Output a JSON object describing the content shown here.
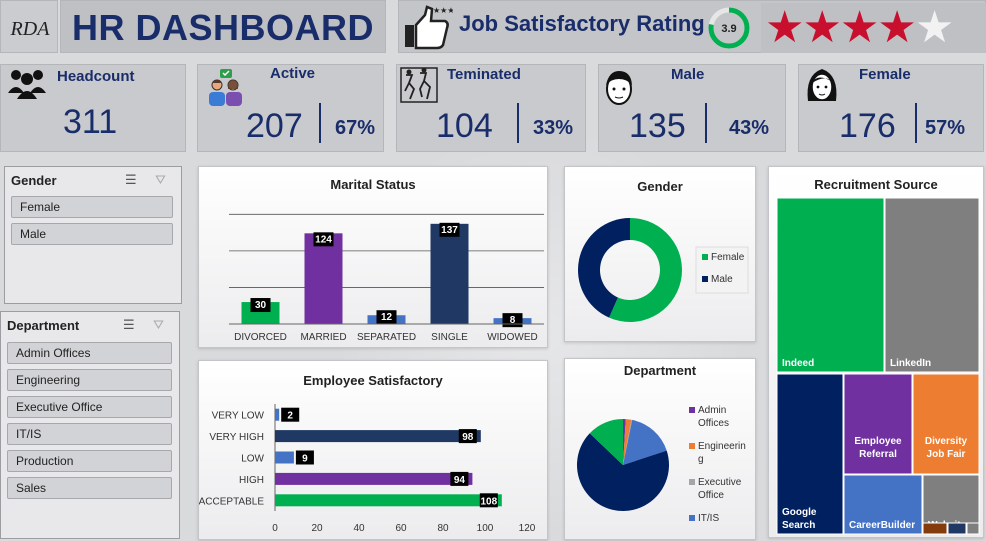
{
  "header": {
    "logo_text": "RDA",
    "title": "HR DASHBOARD",
    "rating_title": "Job Satisfactory Rating",
    "rating_value": "3.9",
    "rating_fraction": 0.78,
    "stars_filled": 4,
    "stars_total": 5
  },
  "kpis": [
    {
      "label": "Headcount",
      "value": "311",
      "icon": "people-group-icon"
    },
    {
      "label": "Active",
      "value": "207",
      "pct": "67%",
      "icon": "active-employees-icon"
    },
    {
      "label": "Teminated",
      "value": "104",
      "pct": "33%",
      "icon": "terminated-icon"
    },
    {
      "label": "Male",
      "value": "135",
      "pct": "43%",
      "icon": "male-face-icon"
    },
    {
      "label": "Female",
      "value": "176",
      "pct": "57%",
      "icon": "female-face-icon"
    }
  ],
  "slicers": {
    "gender": {
      "title": "Gender",
      "items": [
        "Female",
        "Male"
      ]
    },
    "department": {
      "title": "Department",
      "items": [
        "Admin Offices",
        "Engineering",
        "Executive Office",
        "IT/IS",
        "Production",
        "Sales"
      ]
    }
  },
  "colors": {
    "green": "#00b050",
    "purple": "#7030a0",
    "blue": "#4472c4",
    "navy": "#1f3864",
    "orange": "#ed7d31",
    "gray": "#7f7f7f",
    "dark_navy": "#002060",
    "star_red": "#c8102e"
  },
  "chart_data": [
    {
      "id": "marital",
      "type": "bar",
      "title": "Marital Status",
      "categories": [
        "DIVORCED",
        "MARRIED",
        "SEPARATED",
        "SINGLE",
        "WIDOWED"
      ],
      "values": [
        30,
        124,
        12,
        137,
        8
      ],
      "colors": [
        "#00b050",
        "#7030a0",
        "#4472c4",
        "#1f3864",
        "#4472c4"
      ],
      "ylim": [
        0,
        160
      ]
    },
    {
      "id": "gender",
      "type": "pie",
      "title": "Gender",
      "labels": [
        "Female",
        "Male"
      ],
      "values": [
        176,
        135
      ],
      "colors": [
        "#00b050",
        "#002060"
      ],
      "donut": true
    },
    {
      "id": "satisfaction",
      "type": "bar",
      "orientation": "horizontal",
      "title": "Employee Satisfactory",
      "categories": [
        "VERY LOW",
        "VERY HIGH",
        "LOW",
        "HIGH",
        "ACCEPTABLE"
      ],
      "values": [
        2,
        98,
        9,
        94,
        108
      ],
      "colors": [
        "#4472c4",
        "#1f3864",
        "#4472c4",
        "#7030a0",
        "#00b050"
      ],
      "xticks": [
        "0",
        "20",
        "40",
        "60",
        "80",
        "100",
        "120"
      ],
      "xlim": [
        0,
        120
      ]
    },
    {
      "id": "department",
      "type": "pie",
      "title": "Department",
      "legend": [
        "Admin Offices",
        "Engineering",
        "Executive Office",
        "IT/IS"
      ],
      "legend_lines": [
        [
          "Admin",
          "Offices"
        ],
        [
          "Engineerin",
          "g"
        ],
        [
          "Executive",
          "Office"
        ],
        [
          "IT/IS"
        ]
      ],
      "values": [
        3,
        6,
        1,
        52,
        209,
        40
      ],
      "colors": [
        "#7030a0",
        "#ed7d31",
        "#a5a5a5",
        "#4472c4",
        "#002060",
        "#00b050"
      ]
    },
    {
      "id": "recruitment",
      "type": "treemap",
      "title": "Recruitment Source",
      "labels": [
        "Indeed",
        "LinkedIn",
        "Google Search",
        "Employee Referral",
        "Diversity Job Fair",
        "CareerBuilder",
        "Website"
      ],
      "label_lines": [
        [
          "Indeed"
        ],
        [
          "LinkedIn"
        ],
        [
          "Google",
          "Search"
        ],
        [
          "Employee",
          "Referral"
        ],
        [
          "Diversity",
          "Job Fair"
        ],
        [
          "CareerBuilder"
        ],
        [
          "Website"
        ]
      ],
      "values": [
        87,
        76,
        49,
        31,
        29,
        23,
        13
      ],
      "colors": [
        "#00b050",
        "#7f7f7f",
        "#002060",
        "#7030a0",
        "#ed7d31",
        "#4472c4",
        "#7f7f7f"
      ]
    }
  ]
}
